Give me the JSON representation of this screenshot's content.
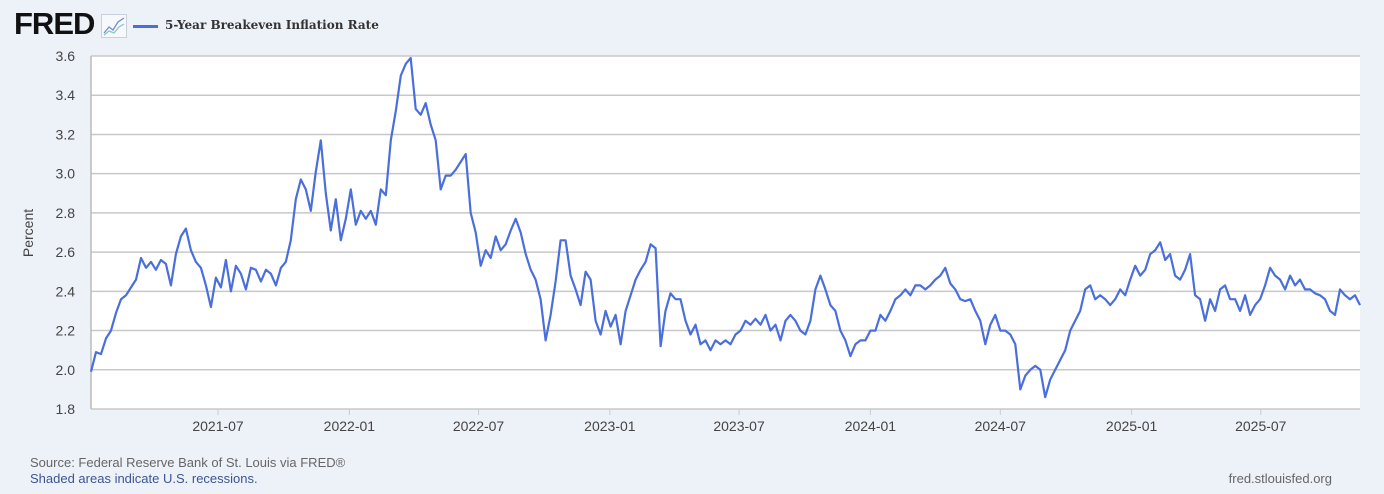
{
  "header": {
    "logo_text": "FRED",
    "logo_icon": "line-chart-icon",
    "legend": "5-Year Breakeven Inflation Rate"
  },
  "colors": {
    "series": "#4a6fdc",
    "background": "#edf1f8",
    "plot": "#ffffff",
    "grid": "#c8c8c8"
  },
  "chart_data": {
    "type": "line",
    "title": "",
    "xlabel": "",
    "ylabel": "Percent",
    "ylim": [
      1.8,
      3.6
    ],
    "xlim": [
      "2021-01-04",
      "2025-11-17"
    ],
    "yticks": [
      "1.8",
      "2.0",
      "2.2",
      "2.4",
      "2.6",
      "2.8",
      "3.0",
      "3.2",
      "3.4",
      "3.6"
    ],
    "xticks": [
      "2021-07",
      "2022-01",
      "2022-07",
      "2023-01",
      "2023-07",
      "2024-01",
      "2024-07",
      "2025-01",
      "2025-07"
    ],
    "grid": "horizontal",
    "legend_placement": "top-left",
    "series": [
      {
        "name": "5-Year Breakeven Inflation Rate",
        "dates": [
          "2021-01-04",
          "2021-01-11",
          "2021-01-18",
          "2021-01-25",
          "2021-02-01",
          "2021-02-08",
          "2021-02-15",
          "2021-02-22",
          "2021-03-01",
          "2021-03-08",
          "2021-03-15",
          "2021-03-22",
          "2021-03-29",
          "2021-04-05",
          "2021-04-12",
          "2021-04-19",
          "2021-04-26",
          "2021-05-03",
          "2021-05-10",
          "2021-05-17",
          "2021-05-24",
          "2021-05-31",
          "2021-06-07",
          "2021-06-14",
          "2021-06-21",
          "2021-06-28",
          "2021-07-05",
          "2021-07-12",
          "2021-07-19",
          "2021-07-26",
          "2021-08-02",
          "2021-08-09",
          "2021-08-16",
          "2021-08-23",
          "2021-08-30",
          "2021-09-06",
          "2021-09-13",
          "2021-09-20",
          "2021-09-27",
          "2021-10-04",
          "2021-10-11",
          "2021-10-18",
          "2021-10-25",
          "2021-11-01",
          "2021-11-08",
          "2021-11-15",
          "2021-11-22",
          "2021-11-29",
          "2021-12-06",
          "2021-12-13",
          "2021-12-20",
          "2021-12-27",
          "2022-01-03",
          "2022-01-10",
          "2022-01-17",
          "2022-01-24",
          "2022-01-31",
          "2022-02-07",
          "2022-02-14",
          "2022-02-21",
          "2022-02-28",
          "2022-03-07",
          "2022-03-14",
          "2022-03-21",
          "2022-03-28",
          "2022-04-04",
          "2022-04-11",
          "2022-04-18",
          "2022-04-25",
          "2022-05-02",
          "2022-05-09",
          "2022-05-16",
          "2022-05-23",
          "2022-05-30",
          "2022-06-06",
          "2022-06-13",
          "2022-06-20",
          "2022-06-27",
          "2022-07-04",
          "2022-07-11",
          "2022-07-18",
          "2022-07-25",
          "2022-08-01",
          "2022-08-08",
          "2022-08-15",
          "2022-08-22",
          "2022-08-29",
          "2022-09-05",
          "2022-09-12",
          "2022-09-19",
          "2022-09-26",
          "2022-10-03",
          "2022-10-10",
          "2022-10-17",
          "2022-10-24",
          "2022-10-31",
          "2022-11-07",
          "2022-11-14",
          "2022-11-21",
          "2022-11-28",
          "2022-12-05",
          "2022-12-12",
          "2022-12-19",
          "2022-12-26",
          "2023-01-02",
          "2023-01-09",
          "2023-01-16",
          "2023-01-23",
          "2023-01-30",
          "2023-02-06",
          "2023-02-13",
          "2023-02-20",
          "2023-02-27",
          "2023-03-06",
          "2023-03-13",
          "2023-03-20",
          "2023-03-27",
          "2023-04-03",
          "2023-04-10",
          "2023-04-17",
          "2023-04-24",
          "2023-05-01",
          "2023-05-08",
          "2023-05-15",
          "2023-05-22",
          "2023-05-29",
          "2023-06-05",
          "2023-06-12",
          "2023-06-19",
          "2023-06-26",
          "2023-07-03",
          "2023-07-10",
          "2023-07-17",
          "2023-07-24",
          "2023-07-31",
          "2023-08-07",
          "2023-08-14",
          "2023-08-21",
          "2023-08-28",
          "2023-09-04",
          "2023-09-11",
          "2023-09-18",
          "2023-09-25",
          "2023-10-02",
          "2023-10-09",
          "2023-10-16",
          "2023-10-23",
          "2023-10-30",
          "2023-11-06",
          "2023-11-13",
          "2023-11-20",
          "2023-11-27",
          "2023-12-04",
          "2023-12-11",
          "2023-12-18",
          "2023-12-25",
          "2024-01-01",
          "2024-01-08",
          "2024-01-15",
          "2024-01-22",
          "2024-01-29",
          "2024-02-05",
          "2024-02-12",
          "2024-02-19",
          "2024-02-26",
          "2024-03-04",
          "2024-03-11",
          "2024-03-18",
          "2024-03-25",
          "2024-04-01",
          "2024-04-08",
          "2024-04-15",
          "2024-04-22",
          "2024-04-29",
          "2024-05-06",
          "2024-05-13",
          "2024-05-20",
          "2024-05-27",
          "2024-06-03",
          "2024-06-10",
          "2024-06-17",
          "2024-06-24",
          "2024-07-01",
          "2024-07-08",
          "2024-07-15",
          "2024-07-22",
          "2024-07-29",
          "2024-08-05",
          "2024-08-12",
          "2024-08-19",
          "2024-08-26",
          "2024-09-02",
          "2024-09-09",
          "2024-09-16",
          "2024-09-23",
          "2024-09-30",
          "2024-10-07",
          "2024-10-14",
          "2024-10-21",
          "2024-10-28",
          "2024-11-04",
          "2024-11-11",
          "2024-11-18",
          "2024-11-25",
          "2024-12-02",
          "2024-12-09",
          "2024-12-16",
          "2024-12-23",
          "2024-12-30",
          "2025-01-06",
          "2025-01-13",
          "2025-01-20",
          "2025-01-27",
          "2025-02-03",
          "2025-02-10",
          "2025-02-17",
          "2025-02-24",
          "2025-03-03",
          "2025-03-10",
          "2025-03-17",
          "2025-03-24",
          "2025-03-31",
          "2025-04-07",
          "2025-04-14",
          "2025-04-21",
          "2025-04-28",
          "2025-05-05",
          "2025-05-12",
          "2025-05-19",
          "2025-05-26",
          "2025-06-02",
          "2025-06-09",
          "2025-06-16",
          "2025-06-23",
          "2025-06-30",
          "2025-07-07",
          "2025-07-14",
          "2025-07-21",
          "2025-07-28",
          "2025-08-04",
          "2025-08-11",
          "2025-08-18",
          "2025-08-25",
          "2025-09-01",
          "2025-09-08",
          "2025-09-15",
          "2025-09-22",
          "2025-09-29",
          "2025-10-06",
          "2025-10-13",
          "2025-10-20",
          "2025-10-27",
          "2025-11-03",
          "2025-11-10",
          "2025-11-17"
        ],
        "values": [
          1.99,
          2.09,
          2.08,
          2.16,
          2.2,
          2.29,
          2.36,
          2.38,
          2.42,
          2.46,
          2.57,
          2.52,
          2.55,
          2.51,
          2.56,
          2.54,
          2.43,
          2.59,
          2.68,
          2.72,
          2.61,
          2.55,
          2.52,
          2.43,
          2.32,
          2.47,
          2.42,
          2.56,
          2.4,
          2.53,
          2.49,
          2.41,
          2.52,
          2.51,
          2.45,
          2.51,
          2.49,
          2.43,
          2.52,
          2.55,
          2.66,
          2.87,
          2.97,
          2.92,
          2.81,
          3.01,
          3.17,
          2.9,
          2.71,
          2.87,
          2.66,
          2.77,
          2.92,
          2.74,
          2.81,
          2.77,
          2.81,
          2.74,
          2.92,
          2.89,
          3.17,
          3.32,
          3.5,
          3.56,
          3.59,
          3.33,
          3.3,
          3.36,
          3.25,
          3.17,
          2.92,
          2.99,
          2.99,
          3.02,
          3.06,
          3.1,
          2.8,
          2.7,
          2.53,
          2.61,
          2.57,
          2.68,
          2.61,
          2.64,
          2.71,
          2.77,
          2.7,
          2.59,
          2.51,
          2.46,
          2.36,
          2.15,
          2.28,
          2.45,
          2.66,
          2.66,
          2.48,
          2.41,
          2.33,
          2.5,
          2.46,
          2.25,
          2.18,
          2.3,
          2.22,
          2.28,
          2.13,
          2.3,
          2.38,
          2.46,
          2.51,
          2.55,
          2.64,
          2.62,
          2.12,
          2.3,
          2.39,
          2.36,
          2.36,
          2.25,
          2.18,
          2.23,
          2.13,
          2.15,
          2.1,
          2.15,
          2.13,
          2.15,
          2.13,
          2.18,
          2.2,
          2.25,
          2.23,
          2.26,
          2.23,
          2.28,
          2.2,
          2.23,
          2.15,
          2.25,
          2.28,
          2.25,
          2.2,
          2.18,
          2.25,
          2.41,
          2.48,
          2.41,
          2.33,
          2.3,
          2.2,
          2.15,
          2.07,
          2.13,
          2.15,
          2.15,
          2.2,
          2.2,
          2.28,
          2.25,
          2.3,
          2.36,
          2.38,
          2.41,
          2.38,
          2.43,
          2.43,
          2.41,
          2.43,
          2.46,
          2.48,
          2.52,
          2.44,
          2.41,
          2.36,
          2.35,
          2.36,
          2.3,
          2.25,
          2.13,
          2.23,
          2.28,
          2.2,
          2.2,
          2.18,
          2.13,
          1.9,
          1.97,
          2.0,
          2.02,
          2.0,
          1.86,
          1.95,
          2.0,
          2.05,
          2.1,
          2.2,
          2.25,
          2.3,
          2.41,
          2.43,
          2.36,
          2.38,
          2.36,
          2.33,
          2.36,
          2.41,
          2.38,
          2.46,
          2.53,
          2.48,
          2.51,
          2.59,
          2.61,
          2.65,
          2.56,
          2.59,
          2.48,
          2.46,
          2.51,
          2.59,
          2.38,
          2.36,
          2.25,
          2.36,
          2.3,
          2.41,
          2.43,
          2.36,
          2.36,
          2.3,
          2.38,
          2.28,
          2.33,
          2.36,
          2.43,
          2.52,
          2.48,
          2.46,
          2.41,
          2.48,
          2.43,
          2.46,
          2.41,
          2.41,
          2.39,
          2.38,
          2.36,
          2.3,
          2.28,
          2.41,
          2.38,
          2.36,
          2.38,
          2.33
        ]
      }
    ]
  },
  "footer": {
    "source": "Source: Federal Reserve Bank of St. Louis via FRED®",
    "recessions_note": "Shaded areas indicate U.S. recessions.",
    "url": "fred.stlouisfed.org"
  }
}
